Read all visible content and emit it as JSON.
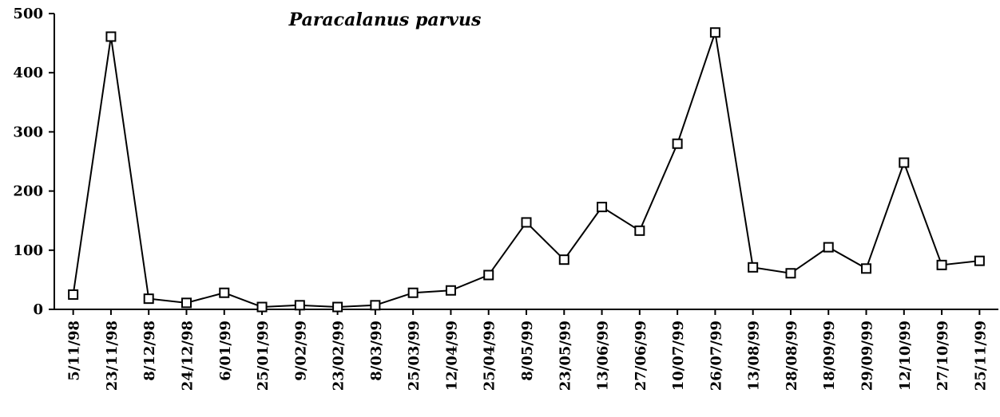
{
  "chart_data": {
    "type": "line",
    "title": "Paracalanus parvus",
    "categories": [
      "5/11/98",
      "23/11/98",
      "8/12/98",
      "24/12/98",
      "6/01/99",
      "25/01/99",
      "9/02/99",
      "23/02/99",
      "8/03/99",
      "25/03/99",
      "12/04/99",
      "25/04/99",
      "8/05/99",
      "23/05/99",
      "13/06/99",
      "27/06/99",
      "10/07/99",
      "26/07/99",
      "13/08/99",
      "28/08/99",
      "18/09/99",
      "29/09/99",
      "12/10/99",
      "27/10/99",
      "25/11/99"
    ],
    "values": [
      25,
      461,
      18,
      11,
      28,
      4,
      7,
      4,
      7,
      28,
      32,
      58,
      147,
      84,
      173,
      133,
      280,
      468,
      71,
      61,
      105,
      69,
      248,
      75,
      82
    ],
    "color": "#000000",
    "ylim": [
      0,
      500
    ],
    "yticks": [
      0,
      100,
      200,
      300,
      400,
      500
    ]
  }
}
